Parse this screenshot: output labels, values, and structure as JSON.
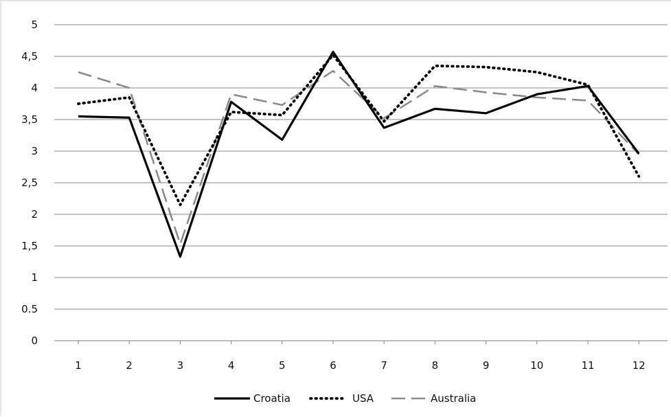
{
  "chart_data": {
    "type": "line",
    "title": "",
    "xlabel": "",
    "ylabel": "",
    "categories": [
      "1",
      "2",
      "3",
      "4",
      "5",
      "6",
      "7",
      "8",
      "9",
      "10",
      "11",
      "12"
    ],
    "ylim": [
      0,
      5
    ],
    "yticks": [
      "0",
      "0.5",
      "1",
      "1,5",
      "2",
      "2,5",
      "3",
      "3,5",
      "4",
      "4,5",
      "5"
    ],
    "grid": true,
    "legend_position": "bottom",
    "series": [
      {
        "name": "Croatia",
        "style": "solid",
        "color": "#000000",
        "values": [
          3.55,
          3.53,
          1.33,
          3.78,
          3.18,
          4.57,
          3.37,
          3.67,
          3.6,
          3.9,
          4.03,
          2.96
        ]
      },
      {
        "name": "USA",
        "style": "dotted",
        "color": "#000000",
        "values": [
          3.75,
          3.85,
          2.15,
          3.62,
          3.57,
          4.52,
          3.47,
          4.35,
          4.33,
          4.25,
          4.05,
          2.6
        ]
      },
      {
        "name": "Australia",
        "style": "dashed",
        "color": "#8c8c8c",
        "values": [
          4.25,
          4.0,
          1.53,
          3.9,
          3.73,
          4.27,
          3.52,
          4.03,
          3.93,
          3.85,
          3.8,
          2.95
        ]
      }
    ]
  }
}
